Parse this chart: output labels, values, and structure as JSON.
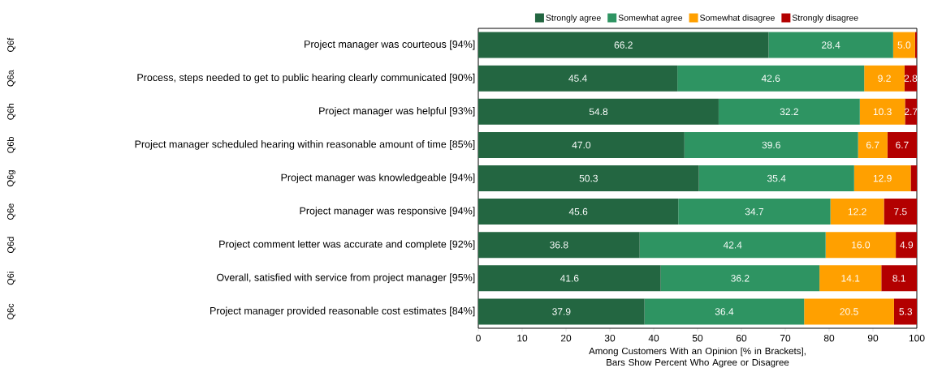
{
  "chart_data": {
    "type": "bar",
    "orientation": "horizontal",
    "stacked": true,
    "legend": "top",
    "categories": [
      "Project manager was courteous [94%]",
      "Process, steps needed to get to public hearing clearly communicated [90%]",
      "Project manager was helpful [93%]",
      "Project manager scheduled hearing within reasonable amount of time [85%]",
      "Project manager was knowledgeable [94%]",
      "Project manager was responsive [94%]",
      "Project comment letter was accurate and complete [92%]",
      "Overall, satisfied with service from project manager [95%]",
      "Project manager provided reasonable cost estimates [84%]"
    ],
    "series": [
      {
        "name": "Strongly agree",
        "color": "#236641",
        "values": [
          66.2,
          45.4,
          54.8,
          47.0,
          50.3,
          45.6,
          36.8,
          41.6,
          37.9
        ],
        "value_labels": [
          "66.2",
          "45.4",
          "54.8",
          "47.0",
          "50.3",
          "45.6",
          "36.8",
          "41.6",
          "37.9"
        ]
      },
      {
        "name": "Somewhat agree",
        "color": "#2e9462",
        "values": [
          28.4,
          42.6,
          32.2,
          39.6,
          35.4,
          34.7,
          42.4,
          36.2,
          36.4
        ],
        "value_labels": [
          "28.4",
          "42.6",
          "32.2",
          "39.6",
          "35.4",
          "34.7",
          "42.4",
          "36.2",
          "36.4"
        ]
      },
      {
        "name": "Somewhat disagree",
        "color": "#ffa000",
        "values": [
          5.0,
          9.2,
          10.3,
          6.7,
          12.9,
          12.2,
          16.0,
          14.1,
          20.5
        ],
        "value_labels": [
          "5.0",
          "9.2",
          "10.3",
          "6.7",
          "12.9",
          "12.2",
          "16.0",
          "14.1",
          "20.5"
        ]
      },
      {
        "name": "Strongly disagree",
        "color": "#b30000",
        "values": [
          0.4,
          2.8,
          2.7,
          6.7,
          1.4,
          7.5,
          4.9,
          8.1,
          5.3
        ],
        "value_labels": [
          null,
          "2.8",
          "2.7",
          "6.7",
          null,
          "7.5",
          "4.9",
          "8.1",
          "5.3"
        ]
      }
    ],
    "xlim": [
      0,
      100
    ],
    "xticks": [
      0,
      10,
      20,
      30,
      40,
      50,
      60,
      70,
      80,
      90,
      100
    ],
    "xlabel": "Among Customers With an Opinion [% in Brackets], Bars Show Percent Who Agree or Disagree",
    "annotations": [
      "Q6f",
      "Q6a",
      "Q6h",
      "Q6b",
      "Q6g",
      "Q6e",
      "Q6d",
      "Q6i",
      "Q6c"
    ]
  }
}
